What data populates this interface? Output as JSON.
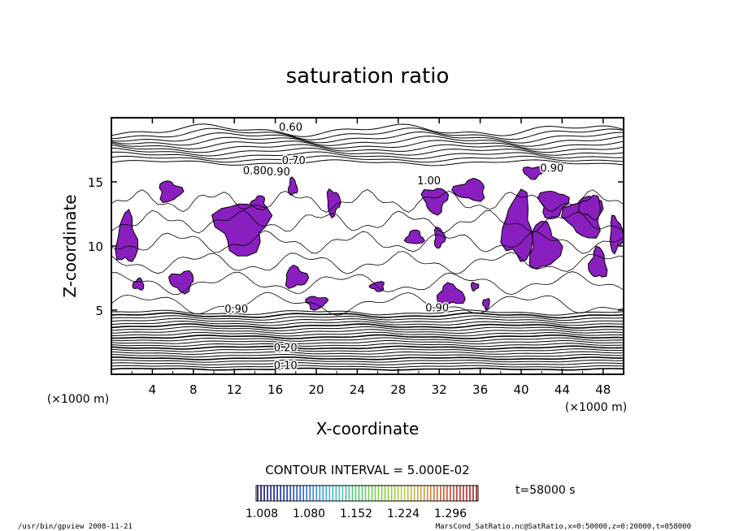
{
  "chart_data": {
    "type": "contour",
    "title": "saturation ratio",
    "xlabel": "X-coordinate",
    "ylabel": "Z-coordinate",
    "x_unit": "(×1000 m)",
    "z_unit": "(×1000 m)",
    "x_ticks": [
      4,
      8,
      12,
      16,
      20,
      24,
      28,
      32,
      36,
      40,
      44,
      48
    ],
    "z_ticks": [
      5,
      10,
      15
    ],
    "xlim": [
      0,
      50
    ],
    "zlim": [
      0,
      20
    ],
    "contour_interval_text": "CONTOUR INTERVAL = 5.000E-02",
    "time_text": "t=58000 s",
    "contour_labels": [
      {
        "text": "0.60",
        "x": 17.5,
        "z": 19.0
      },
      {
        "text": "0.70",
        "x": 17.8,
        "z": 16.4
      },
      {
        "text": "0.80",
        "x": 14.0,
        "z": 15.6
      },
      {
        "text": "0.90",
        "x": 16.3,
        "z": 15.5
      },
      {
        "text": "1.00",
        "x": 31.0,
        "z": 14.8
      },
      {
        "text": "0.90",
        "x": 43.0,
        "z": 15.8
      },
      {
        "text": "0.90",
        "x": 12.2,
        "z": 4.8
      },
      {
        "text": "0.90",
        "x": 31.8,
        "z": 4.9
      },
      {
        "text": "0.20",
        "x": 17.0,
        "z": 1.8
      },
      {
        "text": "0.10",
        "x": 17.0,
        "z": 0.4
      }
    ],
    "supersaturated_regions": [
      {
        "x": 0.3,
        "z": 8.2,
        "w": 2.4,
        "h": 4.6
      },
      {
        "x": 4.4,
        "z": 13.3,
        "w": 2.6,
        "h": 1.9
      },
      {
        "x": 9.8,
        "z": 9.0,
        "w": 6.0,
        "h": 5.0
      },
      {
        "x": 13.6,
        "z": 12.7,
        "w": 1.6,
        "h": 1.3
      },
      {
        "x": 17.2,
        "z": 13.8,
        "w": 1.0,
        "h": 1.6
      },
      {
        "x": 20.9,
        "z": 12.2,
        "w": 1.5,
        "h": 2.4
      },
      {
        "x": 5.5,
        "z": 6.3,
        "w": 2.8,
        "h": 1.9
      },
      {
        "x": 2.0,
        "z": 6.5,
        "w": 1.3,
        "h": 1.0
      },
      {
        "x": 16.7,
        "z": 6.6,
        "w": 2.6,
        "h": 1.9
      },
      {
        "x": 18.8,
        "z": 5.0,
        "w": 2.4,
        "h": 1.2
      },
      {
        "x": 25.2,
        "z": 6.4,
        "w": 1.6,
        "h": 0.9
      },
      {
        "x": 28.6,
        "z": 10.0,
        "w": 2.0,
        "h": 1.3
      },
      {
        "x": 31.4,
        "z": 9.7,
        "w": 1.2,
        "h": 1.9
      },
      {
        "x": 30.2,
        "z": 12.4,
        "w": 2.8,
        "h": 2.4
      },
      {
        "x": 33.2,
        "z": 13.4,
        "w": 3.7,
        "h": 1.9
      },
      {
        "x": 31.5,
        "z": 5.2,
        "w": 3.2,
        "h": 1.9
      },
      {
        "x": 35.0,
        "z": 6.5,
        "w": 0.9,
        "h": 0.7
      },
      {
        "x": 36.2,
        "z": 5.0,
        "w": 0.8,
        "h": 1.0
      },
      {
        "x": 38.0,
        "z": 8.3,
        "w": 3.4,
        "h": 6.2
      },
      {
        "x": 40.5,
        "z": 7.8,
        "w": 3.5,
        "h": 4.3
      },
      {
        "x": 41.5,
        "z": 12.0,
        "w": 3.2,
        "h": 2.6
      },
      {
        "x": 44.0,
        "z": 10.4,
        "w": 4.4,
        "h": 3.8
      },
      {
        "x": 46.5,
        "z": 7.2,
        "w": 2.0,
        "h": 2.8
      },
      {
        "x": 48.5,
        "z": 9.3,
        "w": 1.5,
        "h": 3.2
      },
      {
        "x": 40.0,
        "z": 15.2,
        "w": 2.3,
        "h": 1.1
      },
      {
        "x": 45.5,
        "z": 12.0,
        "w": 2.6,
        "h": 2.0
      }
    ],
    "colorbar": {
      "ticks": [
        "1.008",
        "1.080",
        "1.152",
        "1.224",
        "1.296"
      ],
      "colors": [
        "#0a0a6b",
        "#1a2fb0",
        "#2d6fd8",
        "#3fb7d8",
        "#4fc77a",
        "#7fcf4a",
        "#b7c740",
        "#d98a3a",
        "#c8402c",
        "#9a1a1a"
      ]
    },
    "region_color": "#8a1fc0"
  },
  "footer": {
    "left": "/usr/bin/gpview   2008-11-21",
    "right": "MarsCond_SatRatio.nc@SatRatio,x=0:50000,z=0:20000,t=058000"
  }
}
